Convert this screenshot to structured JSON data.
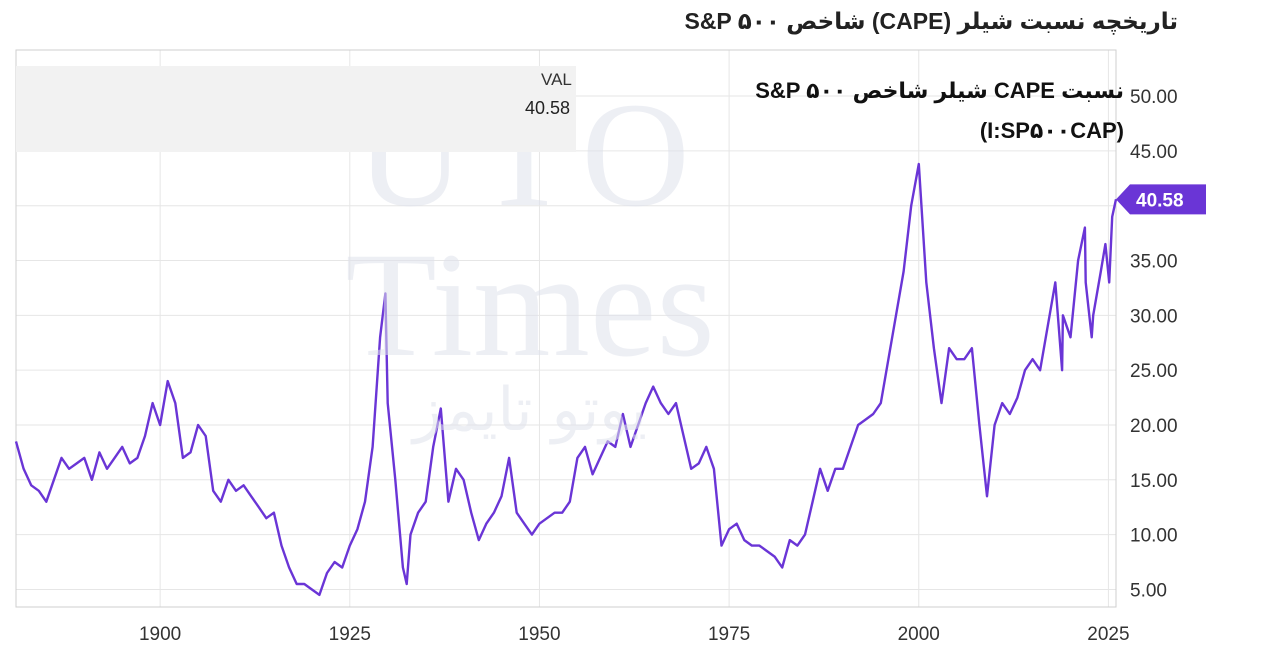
{
  "page_title": "تاریخچه نسبت شیلر (CAPE) شاخص S&P ۵۰۰",
  "legend": {
    "name": "نسبت CAPE شیلر شاخص S&P ۵۰۰",
    "ticker": "(I:SP۵۰۰CAP)",
    "value_header": "VAL",
    "value": "40.58"
  },
  "watermark": [
    "UTO",
    "Times",
    "یوتو تایمز"
  ],
  "colors": {
    "line": "#6a35d6",
    "grid": "#e6e6e6",
    "label_bg": "#6a35d6",
    "legend_bg": "#f2f2f2"
  },
  "chart_data": {
    "type": "line",
    "title": "تاریخچه نسبت شیلر (CAPE) شاخص S&P ۵۰۰",
    "series": [
      {
        "name": "نسبت CAPE شیلر شاخص S&P ۵۰۰",
        "points": [
          [
            1881,
            18.5
          ],
          [
            1882,
            16
          ],
          [
            1883,
            14.5
          ],
          [
            1884,
            14
          ],
          [
            1885,
            13
          ],
          [
            1886,
            15
          ],
          [
            1887,
            17
          ],
          [
            1888,
            16
          ],
          [
            1889,
            16.5
          ],
          [
            1890,
            17
          ],
          [
            1891,
            15
          ],
          [
            1892,
            17.5
          ],
          [
            1893,
            16
          ],
          [
            1894,
            17
          ],
          [
            1895,
            18
          ],
          [
            1896,
            16.5
          ],
          [
            1897,
            17
          ],
          [
            1898,
            19
          ],
          [
            1899,
            22
          ],
          [
            1900,
            20
          ],
          [
            1901,
            24
          ],
          [
            1902,
            22
          ],
          [
            1903,
            17
          ],
          [
            1904,
            17.5
          ],
          [
            1905,
            20
          ],
          [
            1906,
            19
          ],
          [
            1907,
            14
          ],
          [
            1908,
            13
          ],
          [
            1909,
            15
          ],
          [
            1910,
            14
          ],
          [
            1911,
            14.5
          ],
          [
            1912,
            13.5
          ],
          [
            1913,
            12.5
          ],
          [
            1914,
            11.5
          ],
          [
            1915,
            12
          ],
          [
            1916,
            9
          ],
          [
            1917,
            7
          ],
          [
            1918,
            5.5
          ],
          [
            1919,
            5.5
          ],
          [
            1920,
            5
          ],
          [
            1921,
            4.5
          ],
          [
            1922,
            6.5
          ],
          [
            1923,
            7.5
          ],
          [
            1924,
            7
          ],
          [
            1925,
            9
          ],
          [
            1926,
            10.5
          ],
          [
            1927,
            13
          ],
          [
            1928,
            18
          ],
          [
            1929,
            28
          ],
          [
            1929.7,
            32
          ],
          [
            1930,
            22
          ],
          [
            1931,
            15
          ],
          [
            1932,
            7
          ],
          [
            1932.5,
            5.5
          ],
          [
            1933,
            10
          ],
          [
            1934,
            12
          ],
          [
            1935,
            13
          ],
          [
            1936,
            18
          ],
          [
            1937,
            21.5
          ],
          [
            1938,
            13
          ],
          [
            1939,
            16
          ],
          [
            1940,
            15
          ],
          [
            1941,
            12
          ],
          [
            1942,
            9.5
          ],
          [
            1943,
            11
          ],
          [
            1944,
            12
          ],
          [
            1945,
            13.5
          ],
          [
            1946,
            17
          ],
          [
            1947,
            12
          ],
          [
            1948,
            11
          ],
          [
            1949,
            10
          ],
          [
            1950,
            11
          ],
          [
            1951,
            11.5
          ],
          [
            1952,
            12
          ],
          [
            1953,
            12
          ],
          [
            1954,
            13
          ],
          [
            1955,
            17
          ],
          [
            1956,
            18
          ],
          [
            1957,
            15.5
          ],
          [
            1958,
            17
          ],
          [
            1959,
            18.5
          ],
          [
            1960,
            18
          ],
          [
            1961,
            21
          ],
          [
            1962,
            18
          ],
          [
            1963,
            20
          ],
          [
            1964,
            22
          ],
          [
            1965,
            23.5
          ],
          [
            1966,
            22
          ],
          [
            1967,
            21
          ],
          [
            1968,
            22
          ],
          [
            1969,
            19
          ],
          [
            1970,
            16
          ],
          [
            1971,
            16.5
          ],
          [
            1972,
            18
          ],
          [
            1973,
            16
          ],
          [
            1974,
            9
          ],
          [
            1975,
            10.5
          ],
          [
            1976,
            11
          ],
          [
            1977,
            9.5
          ],
          [
            1978,
            9
          ],
          [
            1979,
            9
          ],
          [
            1980,
            8.5
          ],
          [
            1981,
            8
          ],
          [
            1982,
            7
          ],
          [
            1983,
            9.5
          ],
          [
            1984,
            9
          ],
          [
            1985,
            10
          ],
          [
            1986,
            13
          ],
          [
            1987,
            16
          ],
          [
            1988,
            14
          ],
          [
            1989,
            16
          ],
          [
            1990,
            16
          ],
          [
            1991,
            18
          ],
          [
            1992,
            20
          ],
          [
            1993,
            20.5
          ],
          [
            1994,
            21
          ],
          [
            1995,
            22
          ],
          [
            1996,
            26
          ],
          [
            1997,
            30
          ],
          [
            1998,
            34
          ],
          [
            1999,
            40
          ],
          [
            2000,
            43.8
          ],
          [
            2001,
            33
          ],
          [
            2002,
            27
          ],
          [
            2003,
            22
          ],
          [
            2004,
            27
          ],
          [
            2005,
            26
          ],
          [
            2006,
            26
          ],
          [
            2007,
            27
          ],
          [
            2008,
            20
          ],
          [
            2009,
            13.5
          ],
          [
            2010,
            20
          ],
          [
            2011,
            22
          ],
          [
            2012,
            21
          ],
          [
            2013,
            22.5
          ],
          [
            2014,
            25
          ],
          [
            2015,
            26
          ],
          [
            2016,
            25
          ],
          [
            2017,
            29
          ],
          [
            2018,
            33
          ],
          [
            2018.9,
            25
          ],
          [
            2019,
            30
          ],
          [
            2020,
            28
          ],
          [
            2021,
            35
          ],
          [
            2021.9,
            38
          ],
          [
            2022,
            33
          ],
          [
            2022.8,
            28
          ],
          [
            2023,
            30
          ],
          [
            2024,
            34
          ],
          [
            2024.6,
            36.5
          ],
          [
            2025.1,
            33
          ],
          [
            2025.5,
            39
          ],
          [
            2026,
            40.58
          ]
        ]
      }
    ],
    "x_ticks": [
      "1900",
      "1925",
      "1950",
      "1975",
      "2000",
      "2025"
    ],
    "y_ticks": [
      "5.00",
      "10.00",
      "15.00",
      "20.00",
      "25.00",
      "30.00",
      "35.00",
      "40.00",
      "45.00",
      "50.00"
    ],
    "xlim": [
      1881,
      2026
    ],
    "ylim": [
      3.4,
      54.2
    ],
    "last_value_label": "40.58",
    "grid": true
  }
}
